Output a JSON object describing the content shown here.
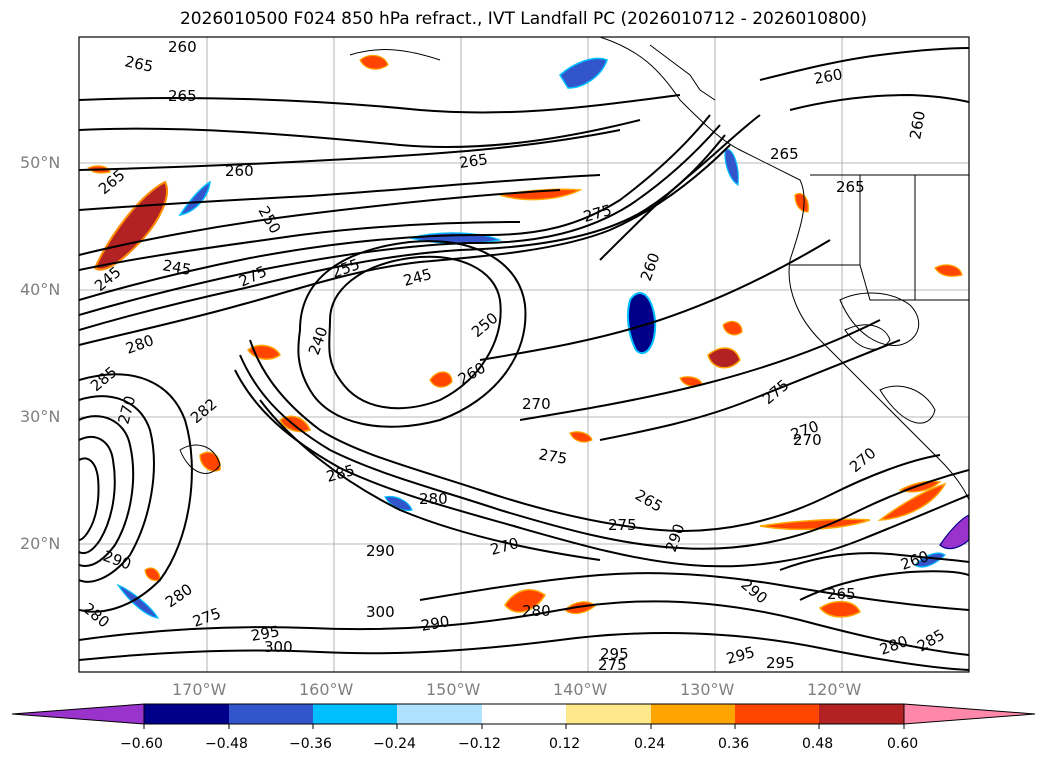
{
  "title": "2026010500 F024 850 hPa refract., IVT Landfall PC (2026010712 - 2026010800)",
  "lat_labels": [
    "50°N",
    "40°N",
    "30°N",
    "20°N"
  ],
  "lon_labels": [
    "170°W",
    "160°W",
    "150°W",
    "140°W",
    "130°W",
    "120°W"
  ],
  "colorbar": {
    "ticks": [
      "−0.60",
      "−0.48",
      "−0.36",
      "−0.24",
      "−0.12",
      "0.12",
      "0.24",
      "0.36",
      "0.48",
      "0.60"
    ],
    "colors": [
      "#9933cc",
      "#00008b",
      "#3355cc",
      "#00bfff",
      "#b0e2ff",
      "#ffffff",
      "#ffe88a",
      "#ffa500",
      "#ff4500",
      "#b22222",
      "#ff88aa"
    ]
  },
  "contour_labels": [
    "260",
    "265",
    "265",
    "265",
    "265",
    "260",
    "250",
    "245",
    "245",
    "275",
    "255",
    "240",
    "250",
    "245",
    "280",
    "285",
    "270",
    "282",
    "285",
    "270",
    "280",
    "275",
    "260",
    "265",
    "275",
    "290",
    "290",
    "275",
    "270",
    "270",
    "275",
    "280",
    "290",
    "260",
    "265",
    "280",
    "300",
    "295",
    "300",
    "290",
    "280",
    "275",
    "295",
    "290",
    "295",
    "295",
    "280",
    "285",
    "270",
    "270",
    "265",
    "260",
    "260",
    "265",
    "275",
    "260"
  ]
}
